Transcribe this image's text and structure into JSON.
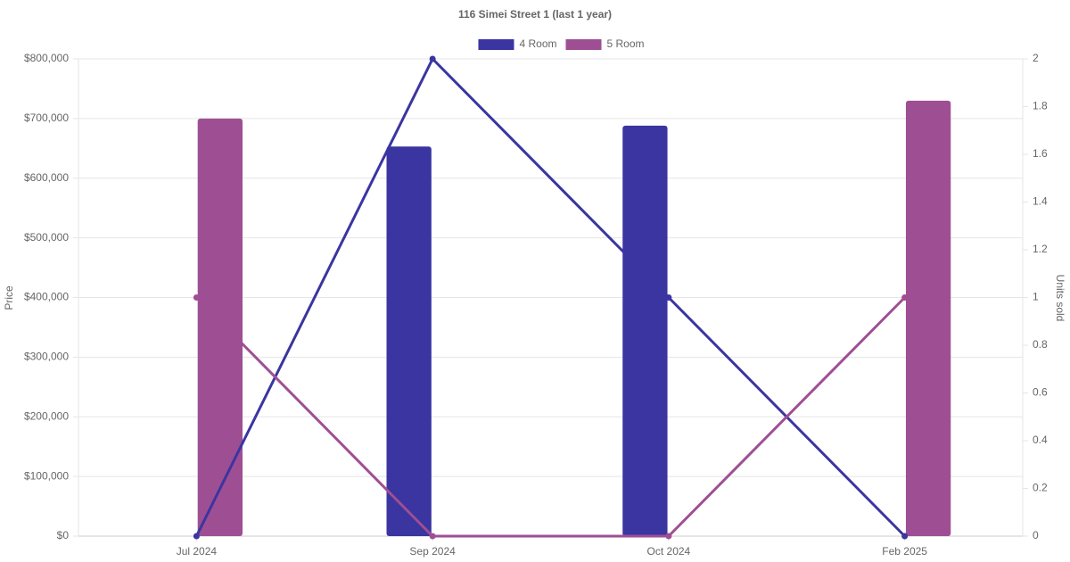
{
  "chart_data": {
    "type": "bar-line",
    "title": "116 Simei Street 1 (last 1 year)",
    "y_label": "Price",
    "y2_label": "Units sold",
    "categories": [
      "Jul 2024",
      "Sep 2024",
      "Oct 2024",
      "Feb 2025"
    ],
    "series": [
      {
        "name": "4 Room",
        "color": "#3a35a0",
        "values": [
          null,
          653000,
          688000,
          null
        ],
        "units_sold": [
          0,
          2,
          1,
          0
        ]
      },
      {
        "name": "5 Room",
        "color": "#9e4f94",
        "values": [
          700000,
          null,
          null,
          730000
        ],
        "units_sold": [
          1,
          0,
          0,
          1
        ]
      }
    ],
    "ylim": [
      0,
      800000
    ],
    "yticks": [
      {
        "value": 0,
        "label": "$0"
      },
      {
        "value": 100000,
        "label": "$100,000"
      },
      {
        "value": 200000,
        "label": "$200,000"
      },
      {
        "value": 300000,
        "label": "$300,000"
      },
      {
        "value": 400000,
        "label": "$400,000"
      },
      {
        "value": 500000,
        "label": "$500,000"
      },
      {
        "value": 600000,
        "label": "$600,000"
      },
      {
        "value": 700000,
        "label": "$700,000"
      },
      {
        "value": 800000,
        "label": "$800,000"
      }
    ],
    "y2lim": [
      0,
      2
    ],
    "y2ticks": [
      0,
      0.2,
      0.4,
      0.6,
      0.8,
      1,
      1.2,
      1.4,
      1.6,
      1.8,
      2
    ],
    "grid": true,
    "legend": "top"
  }
}
